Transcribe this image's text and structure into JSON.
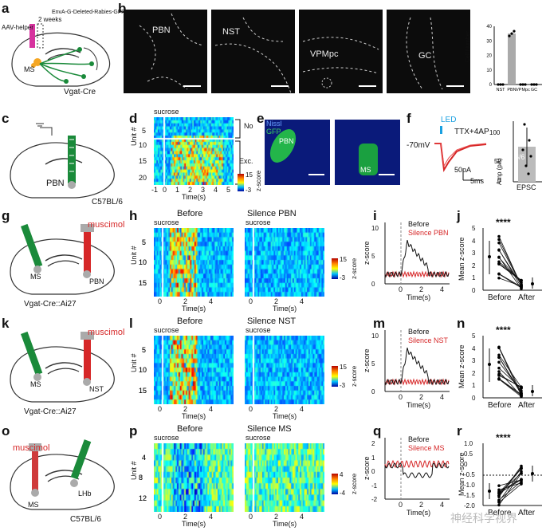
{
  "panel_labels": {
    "a": "a",
    "b": "b",
    "c": "c",
    "d": "d",
    "e": "e",
    "f": "f",
    "g": "g",
    "h": "h",
    "i": "i",
    "j": "j",
    "k": "k",
    "l": "l",
    "m": "m",
    "n": "n",
    "o": "o",
    "p": "p",
    "q": "q",
    "r": "r"
  },
  "panel_a": {
    "weeks": "2 weeks",
    "virus1": "AAV-helper",
    "virus2": "EnvA-G-Deleted-Rabies-GFP",
    "ms": "MS",
    "mouse": "Vgat-Cre"
  },
  "panel_b": {
    "regions": [
      "PBN",
      "NST",
      "VPMpc",
      "GC"
    ],
    "ylabel": "Cell Number"
  },
  "panel_c": {
    "region": "PBN",
    "mouse": "C57BL/6"
  },
  "panel_d": {
    "stim": "sucrose",
    "ylabel": "Unit #",
    "xlabel": "Time(s)",
    "yticks": [
      "5",
      "10",
      "15",
      "20"
    ],
    "xticks": [
      "-1",
      "0",
      "1",
      "2",
      "3",
      "4",
      "5"
    ],
    "group_no": "No",
    "group_exc": "Exc.",
    "cb_max": "15",
    "cb_min": "-3",
    "cb_label": "z-score"
  },
  "panel_e": {
    "nissl": "Nissl",
    "gfp": "GFP",
    "pbn": "PBN",
    "ms": "MS"
  },
  "panel_f": {
    "led": "LED",
    "drug": "TTX+4AP",
    "vm": "-70mV",
    "scale_pa": "50pA",
    "scale_ms": "5ms",
    "frac": "6/6",
    "ylabel": "Amp (pA)",
    "xlabel": "EPSC",
    "yticks": [
      "0",
      "50",
      "100"
    ]
  },
  "panel_g": {
    "drug": "muscimol",
    "ms": "MS",
    "pbn": "PBN",
    "mouse": "Vgat-Cre::Ai27"
  },
  "panel_h": {
    "t1": "Before",
    "t2": "Silence PBN",
    "stim": "sucrose",
    "ylabel": "Unit #",
    "xlabel": "Time(s)",
    "xlabel2": "Time(s)",
    "yticks": [
      "5",
      "10",
      "15"
    ],
    "xticks": [
      "0",
      "2",
      "4"
    ],
    "cb_max": "15",
    "cb_min": "-3",
    "cb_label": "z-score"
  },
  "panel_i": {
    "ylabel": "z-score",
    "xlabel": "Time(s)",
    "yticks": [
      "0",
      "5",
      "10"
    ],
    "xticks": [
      "0",
      "2",
      "4"
    ],
    "legend": [
      "Before",
      "Silence PBN"
    ]
  },
  "panel_j": {
    "sig": "****",
    "ylabel": "Mean z-score",
    "yticks": [
      "0",
      "1",
      "2",
      "3",
      "4",
      "5"
    ],
    "xticks": [
      "Before",
      "After"
    ]
  },
  "panel_k": {
    "drug": "muscimol",
    "ms": "MS",
    "nst": "NST",
    "mouse": "Vgat-Cre::Ai27"
  },
  "panel_l": {
    "t1": "Before",
    "t2": "Silence NST",
    "stim": "sucrose",
    "ylabel": "Unit #",
    "xlabel": "Time(s)",
    "xlabel2": "Time(s)",
    "yticks": [
      "5",
      "10",
      "15"
    ],
    "xticks": [
      "0",
      "2",
      "4"
    ],
    "cb_max": "15",
    "cb_min": "-3",
    "cb_label": "z-score"
  },
  "panel_m": {
    "ylabel": "z-score",
    "xlabel": "Time(s)",
    "yticks": [
      "0",
      "5",
      "10"
    ],
    "xticks": [
      "0",
      "2",
      "4"
    ],
    "legend": [
      "Before",
      "Silence NST"
    ]
  },
  "panel_n": {
    "sig": "****",
    "ylabel": "Mean z-score",
    "yticks": [
      "0",
      "1",
      "2",
      "3",
      "4",
      "5"
    ],
    "xticks": [
      "Before",
      "After"
    ]
  },
  "panel_o": {
    "drug": "muscimol",
    "ms": "MS",
    "lhb": "LHb",
    "mouse": "C57BL/6"
  },
  "panel_p": {
    "t1": "Before",
    "t2": "Silence MS",
    "stim": "sucrose",
    "ylabel": "Unit #",
    "xlabel": "Time(s)",
    "xlabel2": "Time(s)",
    "yticks": [
      "4",
      "8",
      "12"
    ],
    "xticks": [
      "0",
      "2",
      "4"
    ],
    "cb_max": "4",
    "cb_min": "-4",
    "cb_label": "z-score"
  },
  "panel_q": {
    "ylabel": "z-score",
    "xlabel": "Time(s)",
    "yticks": [
      "-2",
      "-1",
      "0",
      "1",
      "2"
    ],
    "xticks": [
      "0",
      "2",
      "4"
    ],
    "legend": [
      "Before",
      "Silence MS"
    ]
  },
  "panel_r": {
    "sig": "****",
    "ylabel": "Mean z-score",
    "yticks": [
      "-2.0",
      "-1.5",
      "-1.0",
      "-0.5",
      "0",
      "0.5",
      "1.0"
    ],
    "xticks": [
      "Before",
      "After"
    ]
  },
  "watermark": "神经科学视界",
  "colors": {
    "red": "#d62728",
    "green": "#1a8a3a",
    "gray": "#999999",
    "black": "#111111"
  },
  "chart_data": [
    {
      "id": "b",
      "type": "bar",
      "categories": [
        "NST",
        "PBN",
        "VPMpc",
        "GC"
      ],
      "values": [
        0,
        35,
        0,
        0
      ],
      "ylabel": "Cell Number",
      "ylim": [
        0,
        40
      ],
      "yticks": [
        "0",
        "10",
        "20",
        "30",
        "40"
      ]
    }
  ]
}
